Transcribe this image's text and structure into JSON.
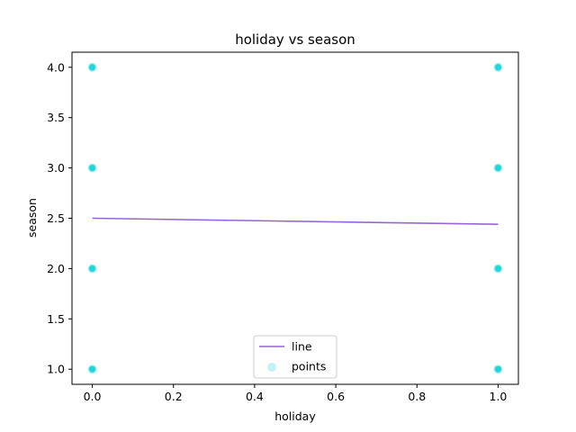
{
  "chart_data": {
    "type": "scatter",
    "title": "holiday vs season",
    "xlabel": "holiday",
    "ylabel": "season",
    "xlim": [
      -0.05,
      1.05
    ],
    "ylim": [
      0.85,
      4.15
    ],
    "xticks": [
      0.0,
      0.2,
      0.4,
      0.6,
      0.8,
      1.0
    ],
    "xtick_labels": [
      "0.0",
      "0.2",
      "0.4",
      "0.6",
      "0.8",
      "1.0"
    ],
    "yticks": [
      1.0,
      1.5,
      2.0,
      2.5,
      3.0,
      3.5,
      4.0
    ],
    "ytick_labels": [
      "1.0",
      "1.5",
      "2.0",
      "2.5",
      "3.0",
      "3.5",
      "4.0"
    ],
    "grid": false,
    "legend_position": "bottom-center",
    "series": [
      {
        "name": "line",
        "kind": "line",
        "color": "#9467d6",
        "x": [
          0.0,
          1.0
        ],
        "y": [
          2.5,
          2.44
        ]
      },
      {
        "name": "points",
        "kind": "scatter",
        "color": "#00cfd6",
        "x": [
          0,
          0,
          0,
          0,
          1,
          1,
          1,
          1
        ],
        "y": [
          1,
          2,
          3,
          4,
          1,
          2,
          3,
          4
        ]
      }
    ]
  }
}
